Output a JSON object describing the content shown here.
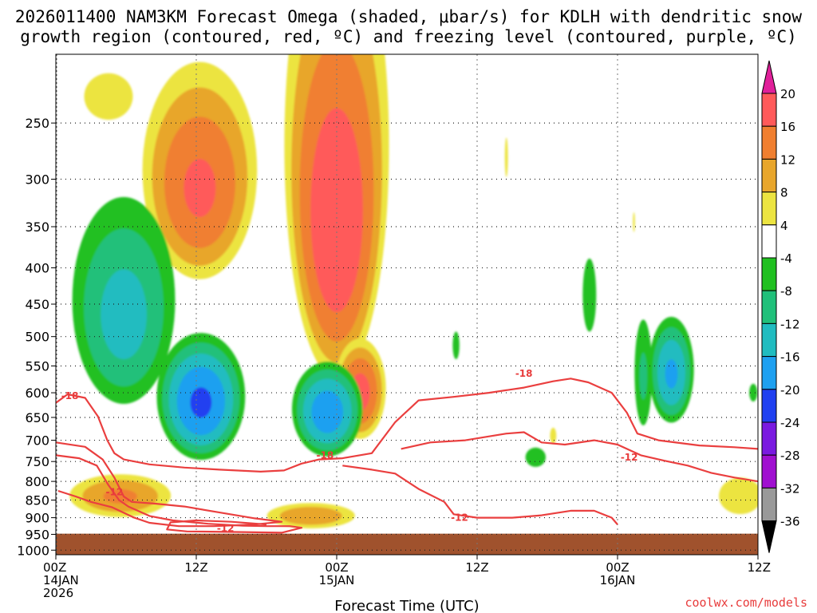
{
  "chart_data": {
    "type": "heatmap",
    "title_line1": "2026011400 NAM3KM Forecast Omega (shaded, μbar/s) for KDLH with dendritic snow",
    "title_line2": "growth region (contoured, red, ºC) and freezing level (contoured, purple, ºC)",
    "xlabel": "Forecast Time (UTC)",
    "ylabel": "",
    "credit": "coolwx.com/models",
    "x_ticks": [
      {
        "hours": 0,
        "line1": "00Z",
        "line2": "14JAN",
        "line3": "2026"
      },
      {
        "hours": 12,
        "line1": "12Z",
        "line2": "",
        "line3": ""
      },
      {
        "hours": 24,
        "line1": "00Z",
        "line2": "15JAN",
        "line3": ""
      },
      {
        "hours": 36,
        "line1": "12Z",
        "line2": "",
        "line3": ""
      },
      {
        "hours": 48,
        "line1": "00Z",
        "line2": "16JAN",
        "line3": ""
      },
      {
        "hours": 60,
        "line1": "12Z",
        "line2": "",
        "line3": ""
      }
    ],
    "xlim_hours": [
      0,
      60
    ],
    "y_levels_hpa": [
      250,
      300,
      350,
      400,
      450,
      500,
      550,
      600,
      650,
      700,
      750,
      800,
      850,
      900,
      950,
      1000
    ],
    "ylim_hpa": [
      200,
      1015
    ],
    "ground_level_hpa": 948,
    "colorbar": {
      "labels": [
        "20",
        "16",
        "12",
        "8",
        "4",
        "-4",
        "-8",
        "-12",
        "-16",
        "-20",
        "-24",
        "-28",
        "-32",
        "-36"
      ],
      "colors": [
        "#ff5a5a",
        "#f07f30",
        "#e8a62c",
        "#ece441",
        "#ffffff",
        "#20c020",
        "#20c07a",
        "#20bcc0",
        "#1ea0f0",
        "#2040f0",
        "#7a1ae0",
        "#a010d0",
        "#999999"
      ],
      "top_color": "#e0209a",
      "bottom_color": "#000000"
    },
    "omega_regions": [
      {
        "name": "warm-lobe-1",
        "t": 12.3,
        "p": 310,
        "rt": 5.6,
        "rp": 120,
        "peak": 17
      },
      {
        "name": "warm-lobe-1-tail",
        "t": 4.5,
        "p": 230,
        "rt": 3.6,
        "rp": 30,
        "peak": 6
      },
      {
        "name": "warm-lobe-2",
        "t": 24.0,
        "p": 350,
        "rt": 5.0,
        "rp": 250,
        "peak": 20
      },
      {
        "name": "warm-lobe-2-foot",
        "t": 26.0,
        "p": 600,
        "rt": 2.5,
        "rp": 110,
        "peak": 18
      },
      {
        "name": "upper-sink-left",
        "t": 5.8,
        "p": 470,
        "rt": 5.2,
        "rp": 180,
        "peak": -14
      },
      {
        "name": "mid-sink-1",
        "t": 12.4,
        "p": 620,
        "rt": 4.2,
        "rp": 140,
        "peak": -21
      },
      {
        "name": "mid-sink-2",
        "t": 23.2,
        "p": 640,
        "rt": 3.4,
        "rp": 110,
        "peak": -19
      },
      {
        "name": "low-warm-1",
        "t": 5.5,
        "p": 840,
        "rt": 5.2,
        "rp": 70,
        "peak": 13
      },
      {
        "name": "low-warm-2",
        "t": 21.8,
        "p": 895,
        "rt": 4.6,
        "rp": 45,
        "peak": 12
      },
      {
        "name": "low-warm-3",
        "t": 58.5,
        "p": 840,
        "rt": 2.6,
        "rp": 70,
        "peak": 8
      },
      {
        "name": "late-sink-1",
        "t": 52.6,
        "p": 565,
        "rt": 2.2,
        "rp": 110,
        "peak": -17
      },
      {
        "name": "late-sink-2",
        "t": 50.2,
        "p": 570,
        "rt": 1.0,
        "rp": 130,
        "peak": -9
      },
      {
        "name": "late-cell-a",
        "t": 45.6,
        "p": 440,
        "rt": 1.0,
        "rp": 90,
        "peak": -6
      },
      {
        "name": "late-cell-b",
        "t": 41.0,
        "p": 740,
        "rt": 1.5,
        "rp": 40,
        "peak": -6
      },
      {
        "name": "late-cell-c",
        "t": 34.2,
        "p": 515,
        "rt": 0.5,
        "rp": 40,
        "peak": -6
      },
      {
        "name": "late-cell-d",
        "t": 59.6,
        "p": 600,
        "rt": 0.6,
        "rp": 30,
        "peak": -6
      },
      {
        "name": "small-warm-a",
        "t": 38.5,
        "p": 280,
        "rt": 0.3,
        "rp": 40,
        "peak": 5
      },
      {
        "name": "small-warm-b",
        "t": 42.5,
        "p": 690,
        "rt": 0.6,
        "rp": 40,
        "peak": 5
      },
      {
        "name": "small-warm-c",
        "t": 49.4,
        "p": 345,
        "rt": 0.2,
        "rp": 25,
        "peak": 5
      }
    ],
    "dgz_contours": [
      {
        "label": "-18",
        "points": [
          [
            0,
            620
          ],
          [
            1.0,
            603
          ],
          [
            2.5,
            610
          ],
          [
            3.6,
            648
          ],
          [
            4.4,
            700
          ],
          [
            5.0,
            730
          ],
          [
            5.8,
            745
          ],
          [
            8.0,
            757
          ],
          [
            11.0,
            765
          ],
          [
            14.0,
            770
          ],
          [
            17.5,
            775
          ],
          [
            19.5,
            772
          ],
          [
            21.0,
            755
          ],
          [
            22.5,
            745
          ],
          [
            24.5,
            742
          ],
          [
            27.0,
            730
          ],
          [
            29.0,
            660
          ],
          [
            31.0,
            615
          ],
          [
            34.0,
            608
          ],
          [
            37.0,
            600
          ],
          [
            40.0,
            590
          ],
          [
            42.5,
            578
          ],
          [
            44.0,
            573
          ],
          [
            45.5,
            580
          ],
          [
            47.5,
            600
          ],
          [
            48.8,
            640
          ],
          [
            49.7,
            685
          ],
          [
            51.5,
            700
          ],
          [
            55.0,
            712
          ],
          [
            58.0,
            716
          ],
          [
            60,
            720
          ]
        ]
      },
      {
        "label": "-12",
        "points": [
          [
            0,
            705
          ],
          [
            2.5,
            715
          ],
          [
            4.0,
            745
          ],
          [
            5.0,
            790
          ],
          [
            5.8,
            840
          ],
          [
            6.5,
            855
          ],
          [
            8.5,
            860
          ],
          [
            11.0,
            868
          ],
          [
            14.0,
            885
          ],
          [
            17.0,
            902
          ],
          [
            19.3,
            912
          ],
          [
            17.0,
            920
          ],
          [
            13.5,
            925
          ],
          [
            10.5,
            925
          ],
          [
            8.0,
            915
          ],
          [
            6.7,
            900
          ],
          [
            4.8,
            870
          ],
          [
            3.0,
            855
          ],
          [
            1.7,
            840
          ],
          [
            0.2,
            825
          ]
        ]
      },
      {
        "label": "-12",
        "points": [
          [
            0,
            735
          ],
          [
            2.0,
            742
          ],
          [
            3.5,
            760
          ],
          [
            4.5,
            810
          ],
          [
            5.4,
            850
          ],
          [
            6.2,
            868
          ],
          [
            8.0,
            895
          ],
          [
            10.0,
            908
          ],
          [
            13.0,
            918
          ],
          [
            16.0,
            924
          ],
          [
            18.0,
            925
          ],
          [
            20.0,
            925
          ],
          [
            21.0,
            930
          ],
          [
            19.3,
            945
          ],
          [
            16.0,
            943
          ],
          [
            11.2,
            941
          ],
          [
            9.5,
            935
          ],
          [
            9.8,
            914
          ],
          [
            12.0,
            908
          ],
          [
            15.0,
            912
          ],
          [
            18.0,
            920
          ]
        ]
      },
      {
        "label": "-12",
        "points": [
          [
            24.5,
            760
          ],
          [
            27.0,
            770
          ],
          [
            29.0,
            780
          ],
          [
            31.0,
            820
          ],
          [
            33.2,
            855
          ],
          [
            34.0,
            890
          ],
          [
            36.0,
            900
          ],
          [
            39.0,
            900
          ],
          [
            41.5,
            893
          ],
          [
            44.0,
            880
          ],
          [
            46.0,
            880
          ],
          [
            47.5,
            900
          ],
          [
            48.0,
            920
          ]
        ]
      },
      {
        "label": "-12",
        "points": [
          [
            29.5,
            720
          ],
          [
            32.0,
            705
          ],
          [
            35.0,
            700
          ],
          [
            38.5,
            685
          ],
          [
            40.0,
            682
          ],
          [
            41.5,
            705
          ],
          [
            43.5,
            710
          ],
          [
            46.0,
            700
          ],
          [
            48.0,
            710
          ],
          [
            50.0,
            735
          ],
          [
            52.0,
            748
          ],
          [
            54.0,
            760
          ],
          [
            56.0,
            778
          ],
          [
            58.0,
            790
          ],
          [
            60,
            800
          ]
        ]
      }
    ]
  }
}
